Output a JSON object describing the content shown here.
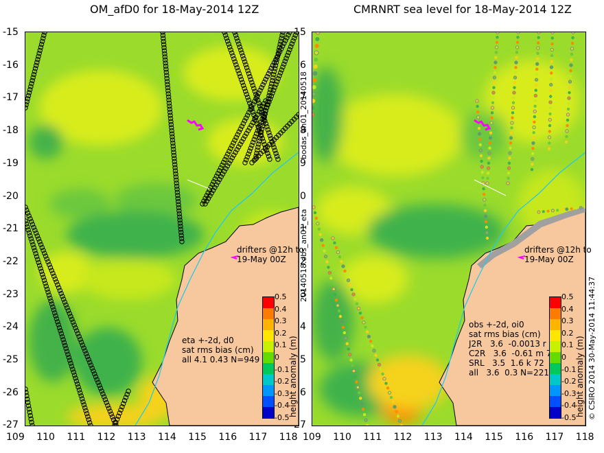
{
  "left_panel": {
    "title": "OM_afD0 for 18-May-2014 12Z",
    "stats": [
      "eta +-2d, d0",
      "sat rms bias (cm)",
      "all 4.1 0.43 N=949"
    ],
    "drifters": [
      "drifters @12h to",
      "19-May 00Z"
    ]
  },
  "right_panel": {
    "title": "CMRNRT sea level  for 18-May-2014 12Z",
    "stats": [
      "obs +-2d, oi0",
      "sat rms bias (cm)",
      "J2R   3.6  -0.0013 r 7",
      "C2R   3.6  -0.61 m 76",
      "SRL   3.5  1.6 k 72",
      "all   3.6  0.3 N=221"
    ],
    "drifters": [
      "drifters @12h to",
      "19-May 00Z"
    ]
  },
  "side_labels": {
    "upper": "bodas_an01_20140518",
    "lower": "20140518.obs_an01_eta",
    "right": "© CSIRO 2014   30-May-2014 11:44:37"
  },
  "colorbar": {
    "title": "height anomaly (m)",
    "ticks": [
      "0.5",
      "0.4",
      "0.3",
      "0.2",
      "0.1",
      "0",
      "-0.1",
      "-0.2",
      "-0.3",
      "-0.4",
      "-0.5"
    ],
    "colors": [
      "#ff0000",
      "#ff7a00",
      "#ffb400",
      "#ffe600",
      "#c8f000",
      "#64dc00",
      "#00c85a",
      "#00c8c8",
      "#0096ff",
      "#0050ff",
      "#0000c8"
    ]
  },
  "map": {
    "lat_labels": [
      "-15",
      "-16",
      "-17",
      "-18",
      "-19",
      "-20",
      "-21",
      "-22",
      "-23",
      "-24",
      "-25",
      "-26",
      "-27"
    ],
    "lon_labels": [
      "109",
      "110",
      "111",
      "112",
      "113",
      "114",
      "115",
      "116",
      "117",
      "118"
    ],
    "lat_range": [
      -27,
      -15
    ],
    "lon_range": [
      109,
      118
    ],
    "land_color": "#f7c79d",
    "ocean_base_color": "#8ed62a"
  }
}
